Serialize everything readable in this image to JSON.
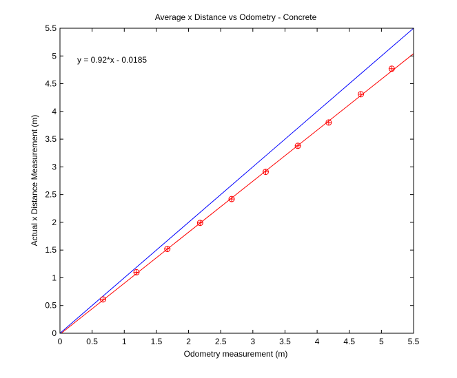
{
  "chart_data": {
    "type": "scatter",
    "title": "Average x Distance vs Odometry - Concrete",
    "xlabel": "Odometry measurement (m)",
    "ylabel": "Actual x Distance Measurement (m)",
    "xlim": [
      0,
      5.5
    ],
    "ylim": [
      0,
      5.5
    ],
    "grid": false,
    "x_ticks": [
      "0",
      "0.5",
      "1",
      "1.5",
      "2",
      "2.5",
      "3",
      "3.5",
      "4",
      "4.5",
      "5",
      "5.5"
    ],
    "y_ticks": [
      "0",
      "0.5",
      "1",
      "1.5",
      "2",
      "2.5",
      "3",
      "3.5",
      "4",
      "4.5",
      "5",
      "5.5"
    ],
    "annotation": "y = 0.92*x - 0.0185",
    "colors": {
      "reference_line": "#0000ff",
      "fit": "#ff0000",
      "data": "#ff0000"
    },
    "series": [
      {
        "kind": "line",
        "color": "#0000ff",
        "x": [
          0,
          5.5
        ],
        "y": [
          0,
          5.5
        ]
      },
      {
        "kind": "line",
        "color": "#ff0000",
        "x": [
          0,
          5.5
        ],
        "y": [
          -0.0185,
          5.0415
        ]
      },
      {
        "kind": "markers",
        "marker": "circle-plus",
        "color": "#ff0000",
        "x": [
          0.67,
          1.19,
          1.67,
          2.18,
          2.67,
          3.2,
          3.7,
          4.18,
          4.68,
          5.16
        ],
        "y": [
          0.61,
          1.1,
          1.52,
          1.99,
          2.42,
          2.91,
          3.38,
          3.8,
          4.31,
          4.77
        ]
      }
    ]
  }
}
